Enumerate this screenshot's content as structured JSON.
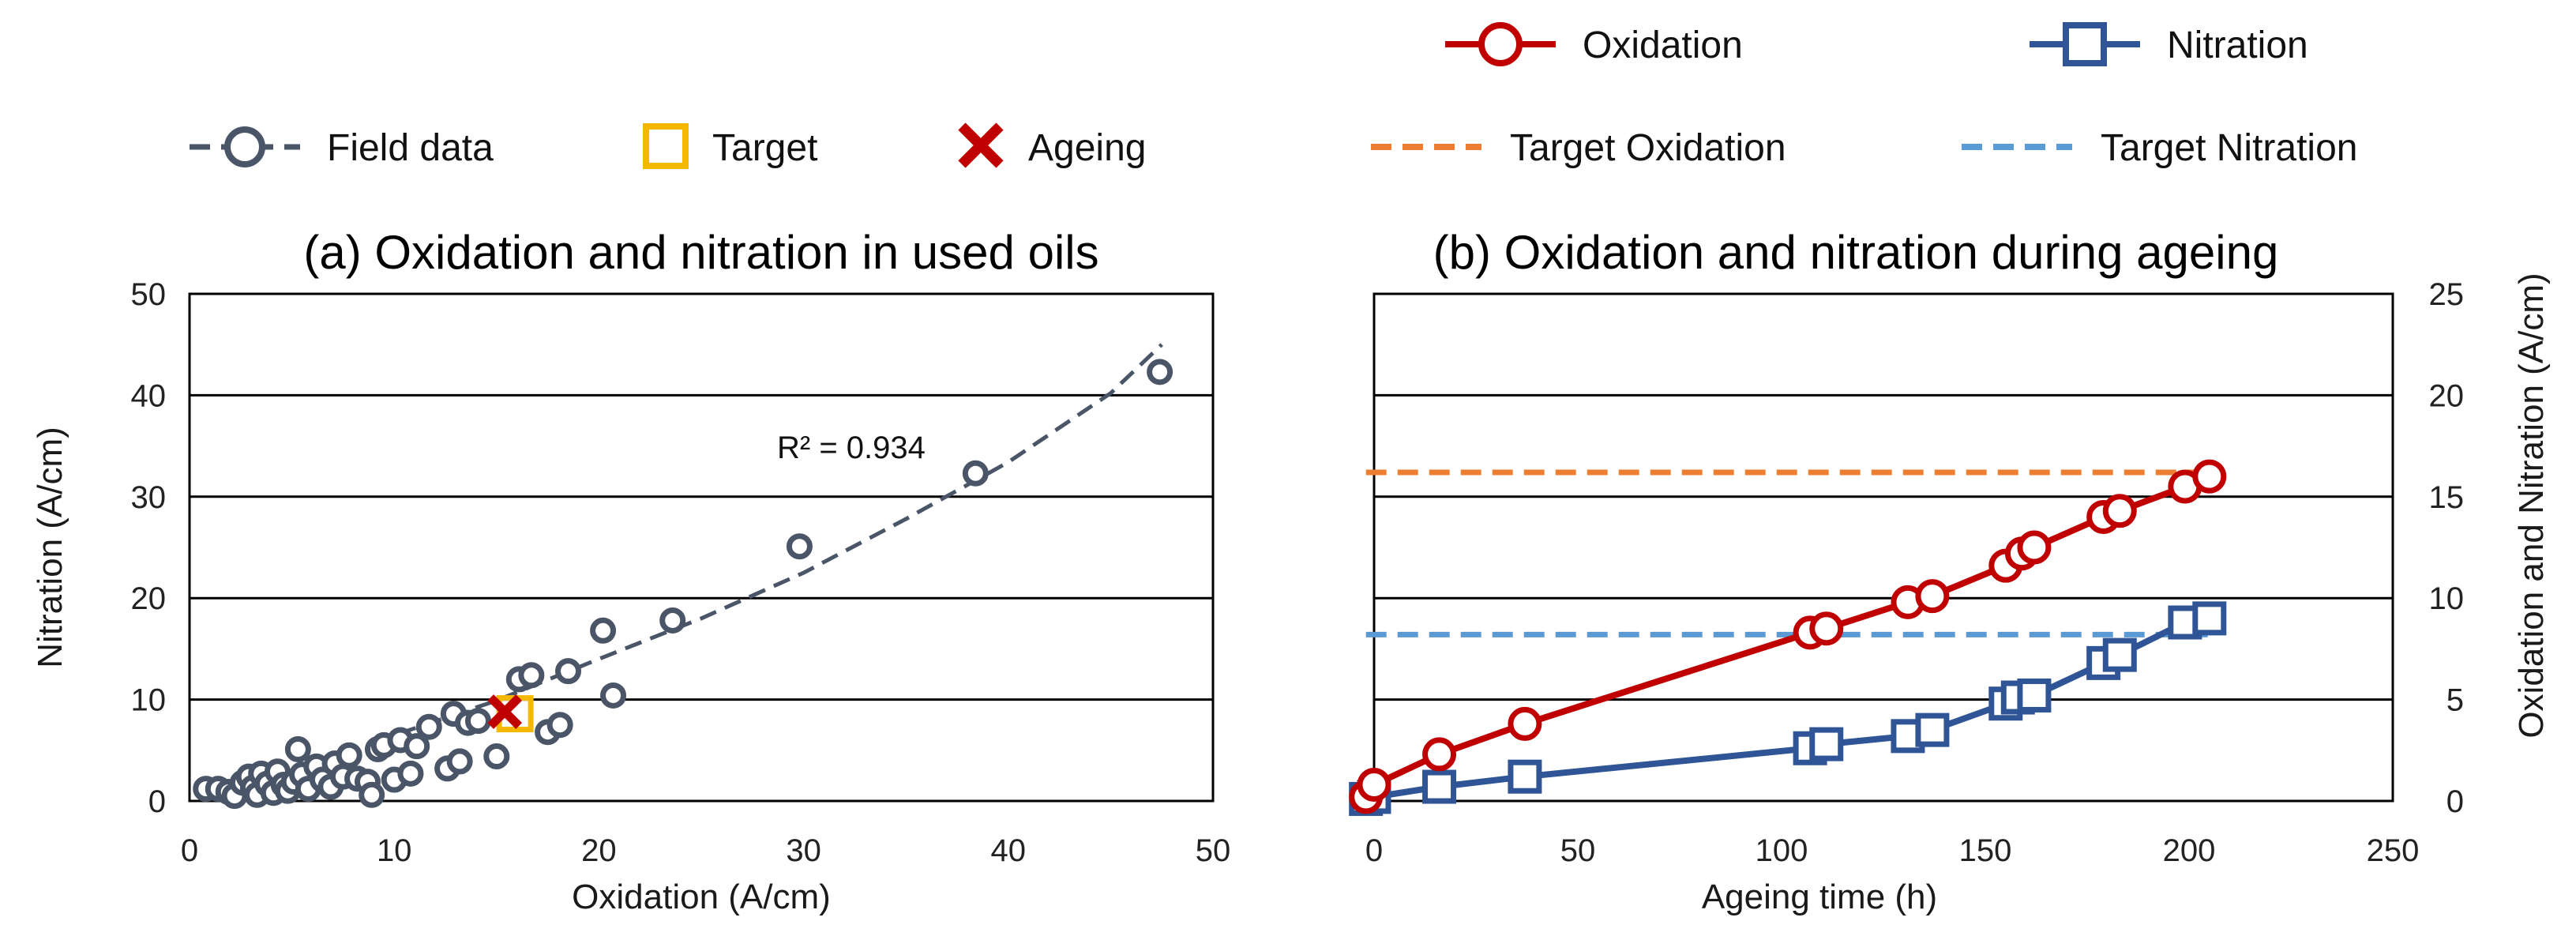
{
  "legend": {
    "field_data": "Field data",
    "target": "Target",
    "ageing": "Ageing",
    "oxidation": "Oxidation",
    "nitration": "Nitration",
    "target_oxidation": "Target Oxidation",
    "target_nitration": "Target Nitration"
  },
  "colors": {
    "field": "#4a5568",
    "target": "#f5b800",
    "ageing": "#c00000",
    "oxidation": "#c00000",
    "nitration": "#2f5597",
    "target_oxidation": "#ed7d31",
    "target_nitration": "#5b9bd5"
  },
  "chart_data": [
    {
      "type": "scatter",
      "title": "(a) Oxidation and nitration in used oils",
      "xlabel": "Oxidation (A/cm)",
      "ylabel": "Nitration (A/cm)",
      "xlim": [
        0,
        50
      ],
      "ylim": [
        0,
        50
      ],
      "xticks": [
        0,
        10,
        20,
        30,
        40,
        50
      ],
      "yticks": [
        0,
        10,
        20,
        30,
        40,
        50
      ],
      "grid": true,
      "annotation": "R² = 0.934",
      "series": [
        {
          "name": "Field data",
          "points": [
            [
              0.8,
              1.2
            ],
            [
              1.4,
              1.2
            ],
            [
              1.9,
              0.9
            ],
            [
              2.2,
              0.5
            ],
            [
              2.6,
              1.8
            ],
            [
              2.9,
              2.4
            ],
            [
              3.1,
              1.3
            ],
            [
              3.3,
              0.6
            ],
            [
              3.5,
              2.7
            ],
            [
              3.8,
              1.7
            ],
            [
              4.1,
              0.8
            ],
            [
              4.3,
              2.9
            ],
            [
              4.6,
              1.6
            ],
            [
              4.8,
              1.0
            ],
            [
              5.1,
              1.9
            ],
            [
              5.3,
              5.1
            ],
            [
              5.5,
              2.6
            ],
            [
              5.8,
              1.2
            ],
            [
              6.2,
              3.4
            ],
            [
              6.5,
              2.1
            ],
            [
              6.9,
              1.4
            ],
            [
              7.1,
              3.7
            ],
            [
              7.5,
              2.4
            ],
            [
              7.8,
              4.5
            ],
            [
              8.2,
              2.2
            ],
            [
              8.7,
              1.9
            ],
            [
              8.9,
              0.6
            ],
            [
              9.2,
              5.1
            ],
            [
              9.5,
              5.5
            ],
            [
              10.0,
              2.1
            ],
            [
              10.3,
              6.0
            ],
            [
              10.8,
              2.7
            ],
            [
              11.1,
              5.4
            ],
            [
              11.7,
              7.3
            ],
            [
              12.6,
              3.2
            ],
            [
              12.9,
              8.6
            ],
            [
              13.2,
              3.9
            ],
            [
              13.6,
              7.7
            ],
            [
              14.1,
              7.9
            ],
            [
              15.0,
              4.4
            ],
            [
              16.1,
              12.0
            ],
            [
              16.7,
              12.4
            ],
            [
              17.5,
              6.8
            ],
            [
              18.1,
              7.5
            ],
            [
              18.5,
              12.8
            ],
            [
              20.2,
              16.8
            ],
            [
              20.7,
              10.4
            ],
            [
              23.6,
              17.8
            ],
            [
              29.8,
              25.1
            ],
            [
              38.4,
              32.3
            ],
            [
              47.4,
              42.3
            ]
          ]
        },
        {
          "name": "Target",
          "points": [
            [
              15.9,
              8.6
            ]
          ]
        },
        {
          "name": "Ageing",
          "points": [
            [
              15.4,
              8.8
            ]
          ]
        },
        {
          "name": "Trend",
          "points": [
            [
              9,
              5.8
            ],
            [
              15,
              9.9
            ],
            [
              20,
              14.0
            ],
            [
              25,
              18.0
            ],
            [
              30,
              22.5
            ],
            [
              35,
              27.8
            ],
            [
              40,
              33.4
            ],
            [
              45,
              40.2
            ],
            [
              47.5,
              45.0
            ]
          ]
        }
      ]
    },
    {
      "type": "line",
      "title": "(b) Oxidation and nitration during ageing",
      "xlabel": "Ageing time (h)",
      "ylabel": "Oxidation and Nitration (A/cm)",
      "xlim": [
        0,
        250
      ],
      "ylim": [
        0,
        25
      ],
      "xticks": [
        0,
        50,
        100,
        150,
        200,
        250
      ],
      "yticks": [
        0,
        5,
        10,
        15,
        20,
        25
      ],
      "grid": true,
      "series": [
        {
          "name": "Oxidation",
          "x": [
            -2,
            0,
            16,
            37,
            107,
            111,
            131,
            137,
            155,
            159,
            162,
            179,
            183,
            199,
            205
          ],
          "values": [
            0.2,
            0.8,
            2.3,
            3.8,
            8.3,
            8.5,
            9.8,
            10.1,
            11.6,
            12.2,
            12.5,
            14.0,
            14.3,
            15.5,
            16.0
          ]
        },
        {
          "name": "Nitration",
          "x": [
            -2,
            0,
            16,
            37,
            107,
            111,
            131,
            137,
            155,
            158,
            162,
            179,
            183,
            199,
            205
          ],
          "values": [
            0.1,
            0.2,
            0.7,
            1.2,
            2.6,
            2.8,
            3.2,
            3.5,
            4.8,
            5.1,
            5.2,
            6.8,
            7.2,
            8.8,
            9.0
          ]
        },
        {
          "name": "Target Oxidation",
          "x": [
            -2,
            205
          ],
          "values": [
            16.2,
            16.2
          ]
        },
        {
          "name": "Target Nitration",
          "x": [
            -2,
            205
          ],
          "values": [
            8.2,
            8.2
          ]
        }
      ]
    }
  ]
}
